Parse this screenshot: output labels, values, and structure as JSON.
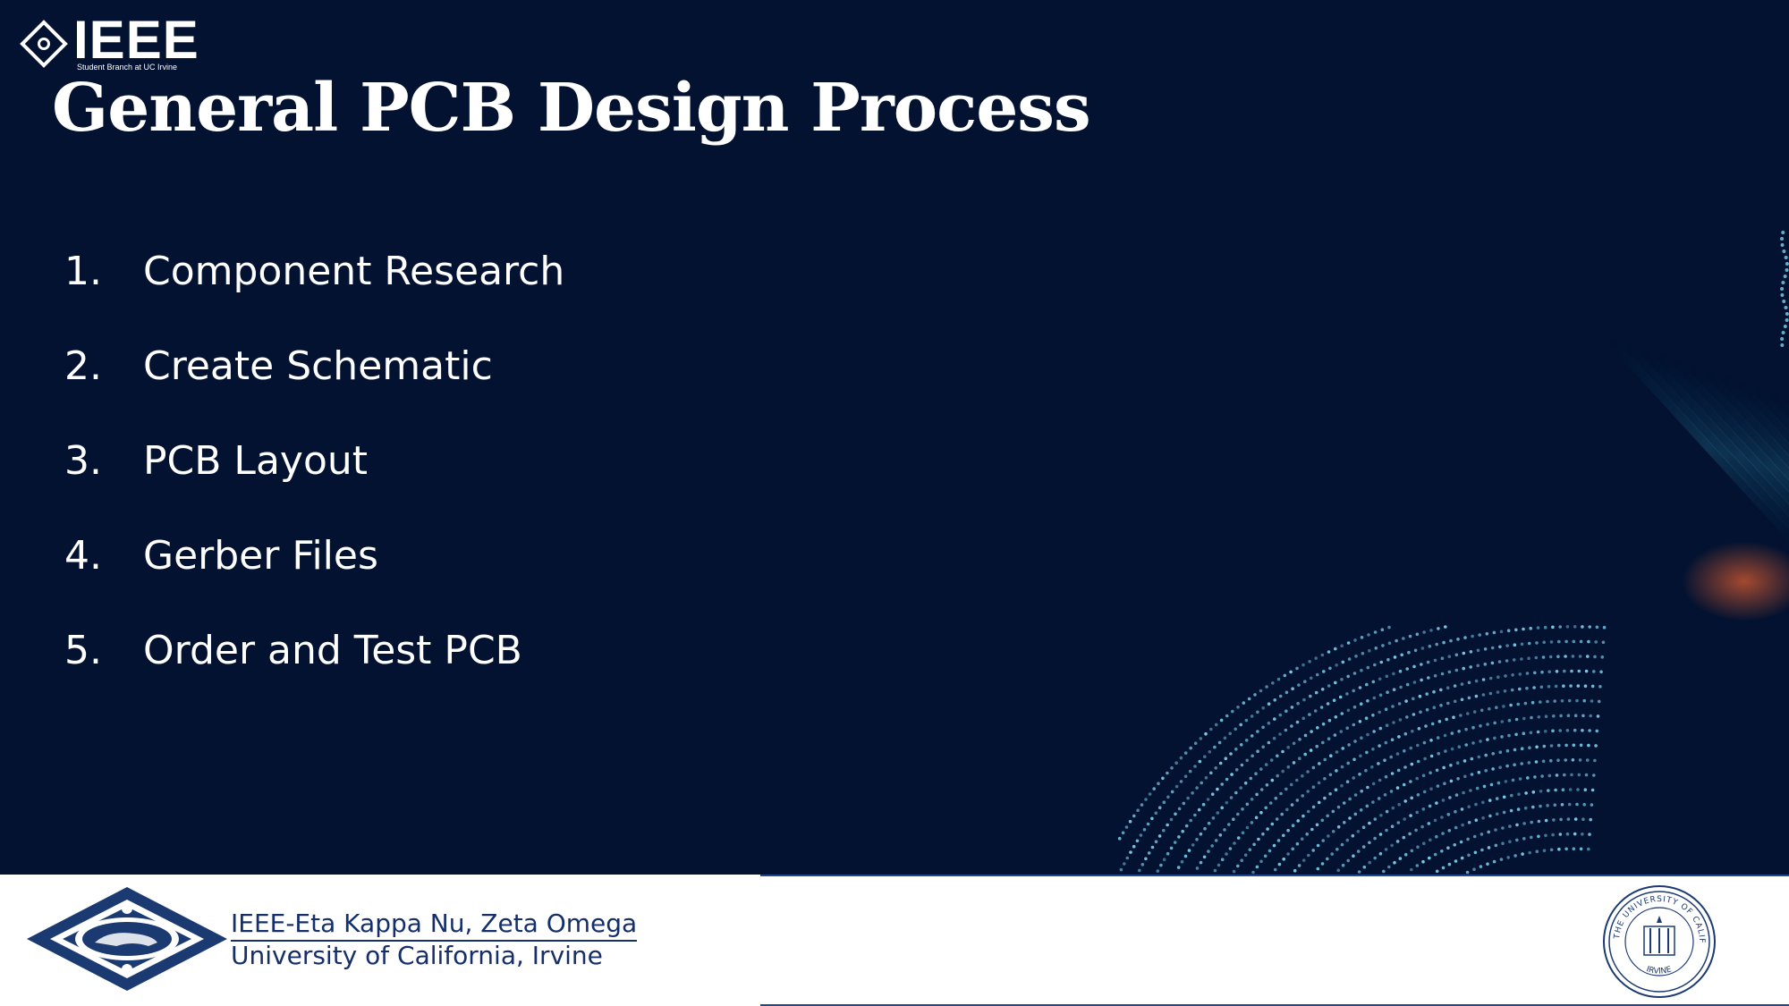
{
  "header": {
    "ieee_word": "IEEE",
    "ieee_subtitle": "Student Branch at UC Irvine",
    "icon": "ieee-diamond-icon"
  },
  "title": "General PCB Design Process",
  "steps": [
    {
      "num": "1.",
      "label": "Component Research"
    },
    {
      "num": "2.",
      "label": "Create Schematic"
    },
    {
      "num": "3.",
      "label": "PCB Layout"
    },
    {
      "num": "4.",
      "label": "Gerber Files"
    },
    {
      "num": "5.",
      "label": "Order and Test PCB"
    }
  ],
  "footer": {
    "org_line1": "IEEE-Eta Kappa Nu, Zeta Omega",
    "org_line2": "University of California, Irvine",
    "seal_text": "THE UNIVERSITY OF CALIFORNIA",
    "seal_bottom": "IRVINE",
    "hkn_icon": "hkn-diamond-logo",
    "seal_icon": "uc-seal-icon"
  },
  "colors": {
    "background": "#021230",
    "footer_text": "#152f6b",
    "accent_dots": "#7fd3ef",
    "accent_orange": "#c0532f"
  }
}
